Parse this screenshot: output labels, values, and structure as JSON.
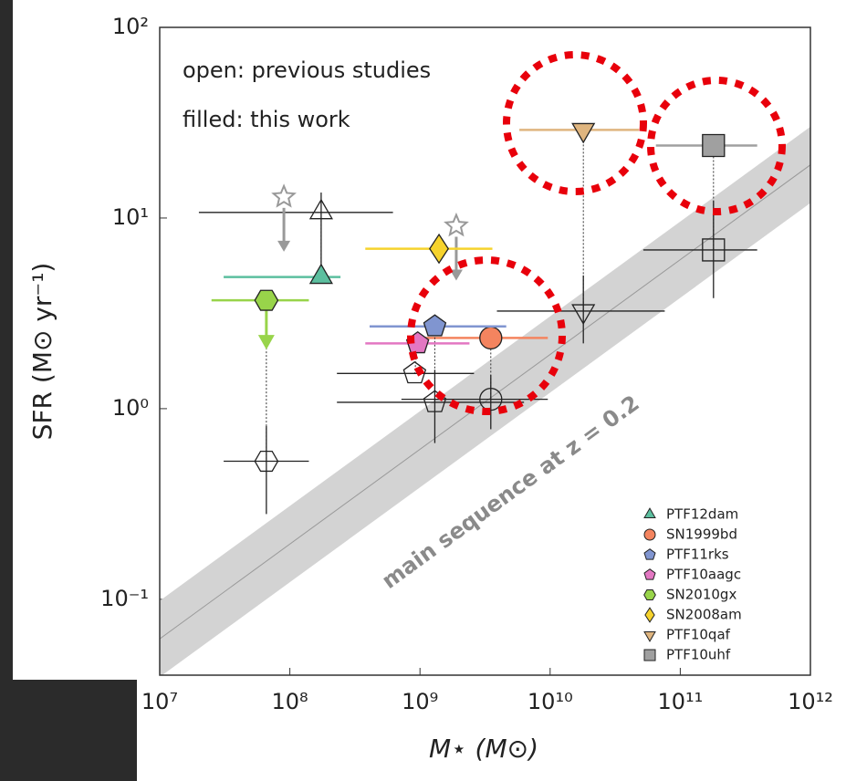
{
  "chart_data": {
    "type": "scatter",
    "xlabel": "M⋆ (M⊙)",
    "ylabel": "SFR (M⊙ yr⁻¹)",
    "annotations": [
      "open: previous studies",
      "filled: this work",
      "main sequence at z = 0.2"
    ],
    "log_x": true,
    "log_y": true,
    "xlim": [
      10000000,
      1000000000000
    ],
    "ylim": [
      0.04,
      100
    ],
    "xticks": [
      {
        "value": 10000000,
        "label": "10⁷"
      },
      {
        "value": 100000000,
        "label": "10⁸"
      },
      {
        "value": 1000000000,
        "label": "10⁹"
      },
      {
        "value": 10000000000,
        "label": "10¹⁰"
      },
      {
        "value": 100000000000,
        "label": "10¹¹"
      },
      {
        "value": 1000000000000,
        "label": "10¹²"
      }
    ],
    "yticks": [
      {
        "value": 0.1,
        "label": "10⁻¹"
      },
      {
        "value": 1,
        "label": "10⁰"
      },
      {
        "value": 10,
        "label": "10¹"
      },
      {
        "value": 100,
        "label": "10²"
      }
    ],
    "main_sequence": {
      "x": [
        10000000,
        1000000000000
      ],
      "values": [
        0.062,
        19
      ],
      "band_dex": 0.2,
      "color": "#d3d3d3"
    },
    "legend": "lower right",
    "series": [
      {
        "name": "PTF12dam",
        "color": "#5cbf9f",
        "marker": "triangle",
        "x": 174000000,
        "y": 4.9,
        "x_lo": 31000000,
        "x_hi": 245000000,
        "prev": {
          "x": 174000000,
          "y": 10.7,
          "x_lo": 20000000,
          "x_hi": 620000000,
          "y_lo": 5.0,
          "y_hi": 13.6
        },
        "limit": {
          "x": 90000000,
          "y": 12.9
        }
      },
      {
        "name": "SN1999bd",
        "color": "#f4845f",
        "marker": "circle",
        "x": 3500000000,
        "y": 2.35,
        "x_lo": 1000000000,
        "x_hi": 9600000000,
        "prev": {
          "x": 3500000000,
          "y": 1.12,
          "x_lo": 720000000,
          "x_hi": 9600000000,
          "y_lo": 0.78,
          "y_hi": 1.5
        }
      },
      {
        "name": "PTF11rks",
        "color": "#8095d0",
        "marker": "pentagon",
        "x": 1300000000,
        "y": 2.7,
        "x_lo": 410000000,
        "x_hi": 4600000000,
        "prev": {
          "x": 1300000000,
          "y": 1.08,
          "x_lo": 230000000,
          "x_hi": 6300000000,
          "y_lo": 0.66,
          "y_hi": 1.6
        }
      },
      {
        "name": "PTF10aagc",
        "color": "#e377c2",
        "marker": "pentagon",
        "x": 960000000,
        "y": 2.2,
        "x_lo": 380000000,
        "x_hi": 2400000000,
        "prev": {
          "x": 910000000,
          "y": 1.53,
          "x_lo": 230000000,
          "x_hi": 2600000000
        }
      },
      {
        "name": "SN2010gx",
        "color": "#98d44a",
        "marker": "hexagon",
        "x": 66000000,
        "y": 3.7,
        "x_lo": 25000000,
        "x_hi": 140000000,
        "upper_limit": true,
        "prev": {
          "x": 66000000,
          "y": 0.53,
          "x_lo": 31000000,
          "x_hi": 140000000,
          "y_lo": 0.28,
          "y_hi": 0.81
        }
      },
      {
        "name": "SN2008am",
        "color": "#f6d32d",
        "marker": "diamond",
        "x": 1400000000,
        "y": 6.9,
        "x_lo": 380000000,
        "x_hi": 3600000000,
        "limit": {
          "x": 1900000000,
          "y": 9.1
        }
      },
      {
        "name": "PTF10qaf",
        "color": "#dfb57f",
        "marker": "triangle-down",
        "x": 18000000000,
        "y": 29,
        "x_lo": 5800000000,
        "x_hi": 48000000000,
        "prev": {
          "x": 18000000000,
          "y": 3.25,
          "x_lo": 3900000000,
          "x_hi": 76000000000,
          "y_lo": 2.2,
          "y_hi": 5.0
        }
      },
      {
        "name": "PTF10uhf",
        "color": "#a0a0a0",
        "marker": "square",
        "x": 180000000000,
        "y": 24,
        "x_lo": 65000000000,
        "x_hi": 390000000000,
        "prev": {
          "x": 180000000000,
          "y": 6.8,
          "x_lo": 52000000000,
          "x_hi": 390000000000,
          "y_lo": 3.8,
          "y_hi": 12.3
        }
      }
    ]
  }
}
